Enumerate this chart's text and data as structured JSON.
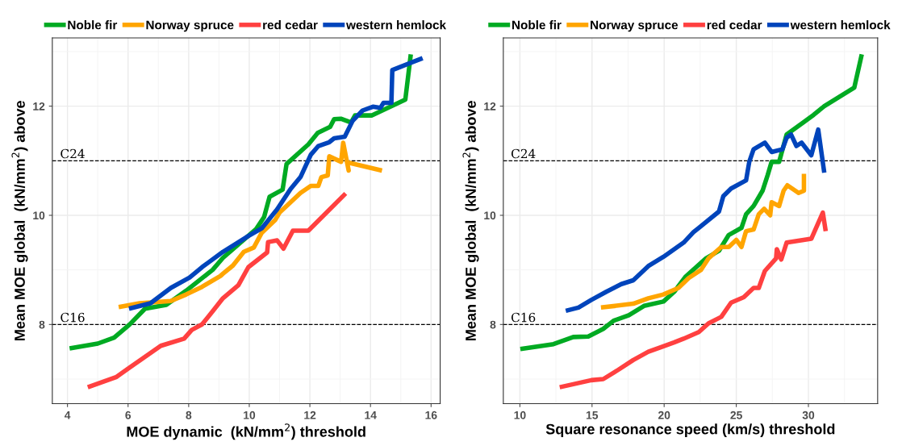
{
  "chart_data": [
    {
      "type": "line",
      "xlabel": "MOE dynamic  (kN/mm$^{2}$) threshold",
      "ylabel": "Mean MOE global  (kN/mm$^{2}$) above",
      "xlim": [
        3.5,
        16.3
      ],
      "xticks": [
        4,
        6,
        8,
        10,
        12,
        14,
        16
      ],
      "ylim": [
        6.55,
        13.25
      ],
      "yticks": [
        8,
        10,
        12
      ],
      "grid": true,
      "legend": "top",
      "ref_lines": [
        {
          "axis": "y",
          "value": 8,
          "label": "C16",
          "color": "#000000",
          "line_style": "dashed"
        },
        {
          "axis": "y",
          "value": 11,
          "label": "C24",
          "color": "#000000",
          "line_style": "dashed"
        }
      ],
      "series": [
        {
          "name": "Noble fir",
          "color": "#00aa22",
          "x": [
            4.07,
            5.0,
            5.54,
            6.05,
            6.56,
            7.26,
            7.92,
            8.79,
            9.13,
            10.23,
            10.49,
            10.67,
            11.1,
            11.23,
            11.95,
            12.26,
            12.67,
            12.8,
            13.02,
            13.36,
            13.49,
            14.05,
            15.15,
            15.33
          ],
          "values": [
            7.56,
            7.65,
            7.76,
            8.0,
            8.29,
            8.36,
            8.62,
            9.0,
            9.22,
            9.75,
            9.97,
            10.34,
            10.47,
            10.94,
            11.3,
            11.51,
            11.62,
            11.76,
            11.77,
            11.7,
            11.83,
            11.83,
            12.12,
            12.95
          ]
        },
        {
          "name": "Norway spruce",
          "color": "#ffa500",
          "x": [
            5.69,
            6.38,
            7.41,
            7.92,
            8.44,
            9.05,
            9.13,
            9.46,
            9.82,
            10.15,
            10.41,
            10.85,
            11.0,
            11.69,
            12.03,
            12.28,
            12.38,
            12.59,
            12.64,
            13.03,
            13.1,
            13.28,
            13.23,
            14.38
          ],
          "values": [
            8.32,
            8.39,
            8.43,
            8.55,
            8.69,
            8.89,
            8.93,
            9.08,
            9.33,
            9.41,
            9.68,
            9.91,
            10.05,
            10.41,
            10.54,
            10.54,
            10.7,
            10.73,
            11.08,
            10.98,
            11.33,
            10.82,
            10.97,
            10.82
          ]
        },
        {
          "name": "red cedar",
          "color": "#ff4040",
          "x": [
            4.67,
            5.62,
            6.05,
            6.49,
            7.08,
            7.85,
            8.1,
            8.44,
            8.79,
            9.13,
            9.64,
            9.97,
            10.59,
            10.62,
            10.92,
            11.13,
            11.44,
            11.95,
            13.18
          ],
          "values": [
            6.85,
            7.04,
            7.21,
            7.38,
            7.61,
            7.74,
            7.9,
            8.0,
            8.24,
            8.48,
            8.72,
            9.05,
            9.32,
            9.51,
            9.54,
            9.39,
            9.72,
            9.72,
            10.4
          ]
        },
        {
          "name": "western hemlock",
          "color": "#0044bb",
          "x": [
            6.03,
            6.74,
            7.41,
            8.03,
            8.44,
            9.13,
            9.97,
            10.41,
            10.92,
            11.36,
            11.69,
            12.03,
            12.28,
            12.64,
            12.8,
            13.15,
            13.41,
            13.74,
            14.08,
            14.33,
            14.43,
            14.69,
            14.72,
            15.72
          ],
          "values": [
            8.29,
            8.39,
            8.67,
            8.86,
            9.05,
            9.33,
            9.62,
            9.76,
            10.11,
            10.48,
            10.7,
            11.11,
            11.27,
            11.34,
            11.41,
            11.44,
            11.73,
            11.92,
            11.99,
            11.97,
            12.06,
            12.06,
            12.66,
            12.88
          ]
        }
      ]
    },
    {
      "type": "line",
      "xlabel": "Square resonance speed (km/s) threshold",
      "ylabel": "Mean MOE global  (kN/mm$^{2}$) above",
      "xlim": [
        8.85,
        34.8
      ],
      "xticks": [
        10,
        15,
        20,
        25,
        30
      ],
      "ylim": [
        6.55,
        13.25
      ],
      "yticks": [
        8,
        10,
        12
      ],
      "grid": true,
      "legend": "top",
      "ref_lines": [
        {
          "axis": "y",
          "value": 8,
          "label": "C16",
          "color": "#000000",
          "line_style": "dashed"
        },
        {
          "axis": "y",
          "value": 11,
          "label": "C24",
          "color": "#000000",
          "line_style": "dashed"
        }
      ],
      "series": [
        {
          "name": "Noble fir",
          "color": "#00aa22",
          "x": [
            10.03,
            12.33,
            13.7,
            14.74,
            15.78,
            16.5,
            17.55,
            18.6,
            19.95,
            20.7,
            21.5,
            22.9,
            23.8,
            24.48,
            25.36,
            25.68,
            26.2,
            26.82,
            27.18,
            27.45,
            27.97,
            28.49,
            29.69,
            30.36,
            31.1,
            33.18,
            33.7
          ],
          "values": [
            7.55,
            7.64,
            7.77,
            7.78,
            7.92,
            8.07,
            8.17,
            8.34,
            8.42,
            8.6,
            8.88,
            9.21,
            9.35,
            9.64,
            9.77,
            10.02,
            10.17,
            10.45,
            10.74,
            10.98,
            10.98,
            11.48,
            11.71,
            11.84,
            12.0,
            12.34,
            12.95
          ]
        },
        {
          "name": "Norway spruce",
          "color": "#ffa500",
          "x": [
            15.62,
            17.86,
            18.9,
            19.95,
            20.99,
            21.7,
            22.55,
            23.07,
            23.96,
            24.48,
            25.0,
            25.36,
            25.68,
            26.2,
            26.56,
            26.93,
            27.35,
            27.45,
            27.97,
            28.28,
            28.54,
            29.32,
            29.69,
            29.69
          ],
          "values": [
            8.31,
            8.38,
            8.48,
            8.55,
            8.67,
            8.85,
            9.0,
            9.21,
            9.42,
            9.42,
            9.55,
            9.42,
            9.71,
            9.74,
            10.02,
            10.12,
            10.0,
            10.24,
            10.17,
            10.45,
            10.55,
            10.41,
            10.45,
            10.76
          ]
        },
        {
          "name": "red cedar",
          "color": "#ff4040",
          "x": [
            12.76,
            14.95,
            15.78,
            16.82,
            17.86,
            18.9,
            19.95,
            20.68,
            21.35,
            22.4,
            23.07,
            23.96,
            24.64,
            25.52,
            26.2,
            26.56,
            26.98,
            27.76,
            27.81,
            28.12,
            28.49,
            30.2,
            31.0,
            31.2
          ],
          "values": [
            6.85,
            6.98,
            7.0,
            7.17,
            7.35,
            7.5,
            7.6,
            7.67,
            7.74,
            7.86,
            8.02,
            8.14,
            8.4,
            8.5,
            8.67,
            8.67,
            8.98,
            9.21,
            9.38,
            9.19,
            9.5,
            9.57,
            10.05,
            9.71
          ]
        },
        {
          "name": "western hemlock",
          "color": "#0044bb",
          "x": [
            13.18,
            14.06,
            14.95,
            15.99,
            17.03,
            17.86,
            18.9,
            19.95,
            21.35,
            22.03,
            22.4,
            23.8,
            24.1,
            24.64,
            25.68,
            25.9,
            26.2,
            26.98,
            27.45,
            28.2,
            28.49,
            28.8,
            29.17,
            29.53,
            30.2,
            30.68,
            31.1
          ],
          "values": [
            8.25,
            8.31,
            8.45,
            8.6,
            8.74,
            8.81,
            9.07,
            9.24,
            9.5,
            9.69,
            9.77,
            10.07,
            10.35,
            10.49,
            10.64,
            10.98,
            11.21,
            11.33,
            11.16,
            11.21,
            11.42,
            11.48,
            11.27,
            11.33,
            11.1,
            11.57,
            10.78
          ]
        }
      ]
    }
  ]
}
